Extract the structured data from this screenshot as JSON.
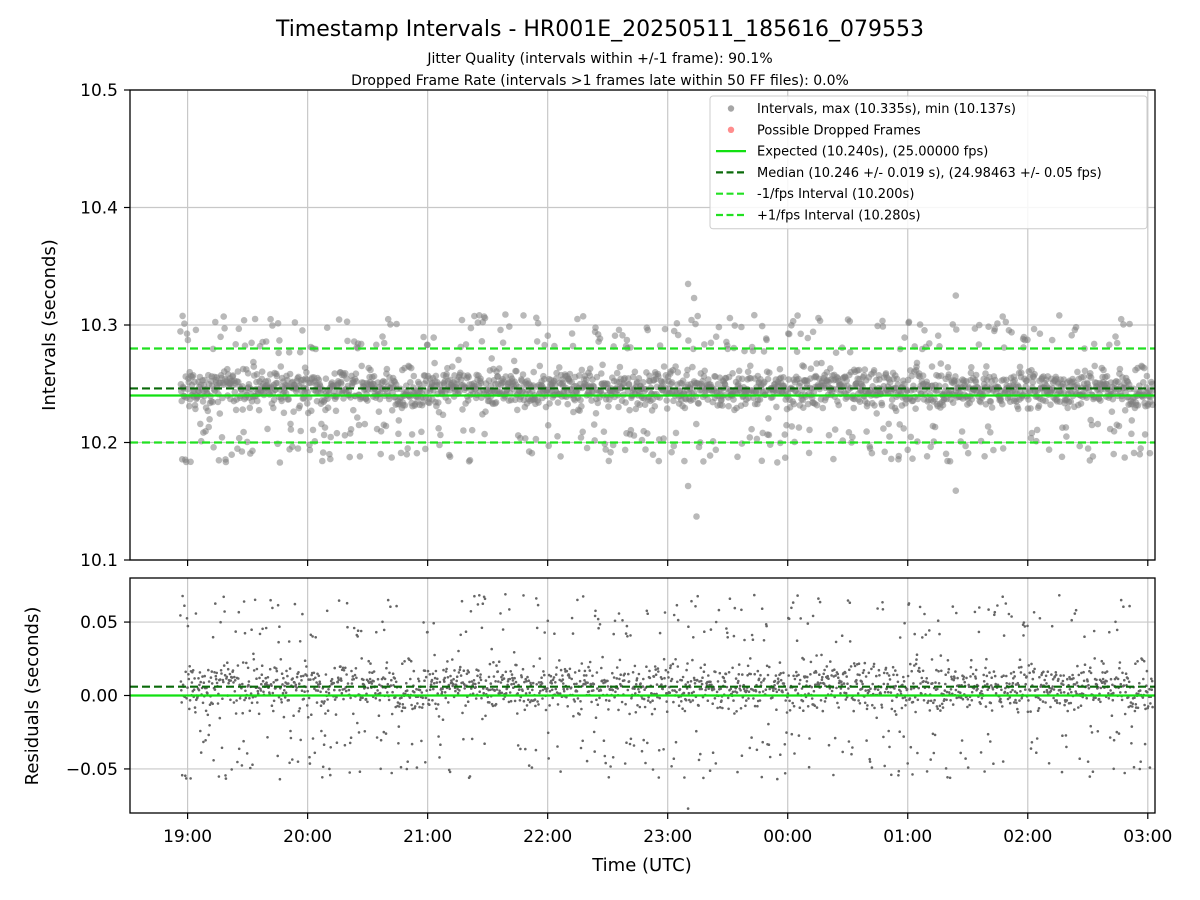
{
  "title": "Timestamp Intervals - HR001E_20250511_185616_079553",
  "subtitle_1": "Jitter Quality (intervals within +/-1 frame): 90.1%",
  "subtitle_2": "Dropped Frame Rate (intervals >1 frames late within 50 FF files): 0.0%",
  "colors": {
    "points": "#808080",
    "dropped": "#ff5c5c",
    "expected": "#11e011",
    "median": "#0a6a0a",
    "fps_band": "#22e022",
    "grid": "#c8c8c8"
  },
  "chart_data": [
    {
      "type": "scatter",
      "panel": "intervals",
      "ylabel": "Intervals (seconds)",
      "ylim": [
        10.1,
        10.5
      ],
      "yticks": [
        "10.1",
        "10.2",
        "10.3",
        "10.4",
        "10.5"
      ],
      "xlim_hours": [
        18.52,
        27.06
      ],
      "grid": true,
      "legend_position": "top-right",
      "legend": [
        {
          "label": "Intervals, max (10.335s), min (10.137s)",
          "kind": "dot",
          "color": "#808080"
        },
        {
          "label": "Possible Dropped Frames",
          "kind": "dot",
          "color": "#ff5c5c"
        },
        {
          "label": "Expected (10.240s), (25.00000 fps)",
          "kind": "solid",
          "color": "#11e011"
        },
        {
          "label": "Median (10.246 +/- 0.019 s), (24.98463 +/- 0.05 fps)",
          "kind": "dashed",
          "color": "#0a6a0a"
        },
        {
          "label": "-1/fps Interval (10.200s)",
          "kind": "dashed",
          "color": "#22e022"
        },
        {
          "label": "+1/fps Interval (10.280s)",
          "kind": "dashed",
          "color": "#22e022"
        }
      ],
      "reference_lines": [
        {
          "name": "Expected",
          "y": 10.24,
          "style": "solid",
          "color": "#11e011"
        },
        {
          "name": "Median",
          "y": 10.246,
          "style": "dashed",
          "color": "#0a6a0a"
        },
        {
          "name": "-1/fps",
          "y": 10.2,
          "style": "dashed",
          "color": "#22e022"
        },
        {
          "name": "+1/fps",
          "y": 10.28,
          "style": "dashed",
          "color": "#22e022"
        }
      ],
      "series": {
        "x_start_hours": 18.94,
        "x_end_hours": 27.04,
        "n_points": 2200,
        "center": 10.246,
        "max": 10.335,
        "min": 10.137,
        "notable_points": [
          {
            "x": 23.17,
            "y": 10.335
          },
          {
            "x": 23.22,
            "y": 10.323
          },
          {
            "x": 23.17,
            "y": 10.163
          },
          {
            "x": 23.24,
            "y": 10.137
          },
          {
            "x": 25.4,
            "y": 10.325
          },
          {
            "x": 25.4,
            "y": 10.159
          }
        ]
      }
    },
    {
      "type": "scatter",
      "panel": "residuals",
      "ylabel": "Residuals (seconds)",
      "xlabel": "Time (UTC)",
      "ylim": [
        -0.08,
        0.08
      ],
      "yticks": [
        {
          "value": -0.05,
          "label": "−0.05"
        },
        {
          "value": 0.0,
          "label": "0.00"
        },
        {
          "value": 0.05,
          "label": "0.05"
        }
      ],
      "xlim_hours": [
        18.52,
        27.06
      ],
      "xticks": [
        {
          "hour": 19,
          "label": "19:00"
        },
        {
          "hour": 20,
          "label": "20:00"
        },
        {
          "hour": 21,
          "label": "21:00"
        },
        {
          "hour": 22,
          "label": "22:00"
        },
        {
          "hour": 23,
          "label": "23:00"
        },
        {
          "hour": 24,
          "label": "00:00"
        },
        {
          "hour": 25,
          "label": "01:00"
        },
        {
          "hour": 26,
          "label": "02:00"
        },
        {
          "hour": 27,
          "label": "03:00"
        }
      ],
      "grid": true,
      "reference_lines": [
        {
          "name": "Expected",
          "y": 0.0,
          "style": "solid",
          "color": "#11e011"
        },
        {
          "name": "Median",
          "y": 0.006,
          "style": "dashed",
          "color": "#0a6a0a"
        }
      ],
      "series": {
        "residual_of": "intervals",
        "expected": 10.24
      }
    }
  ]
}
